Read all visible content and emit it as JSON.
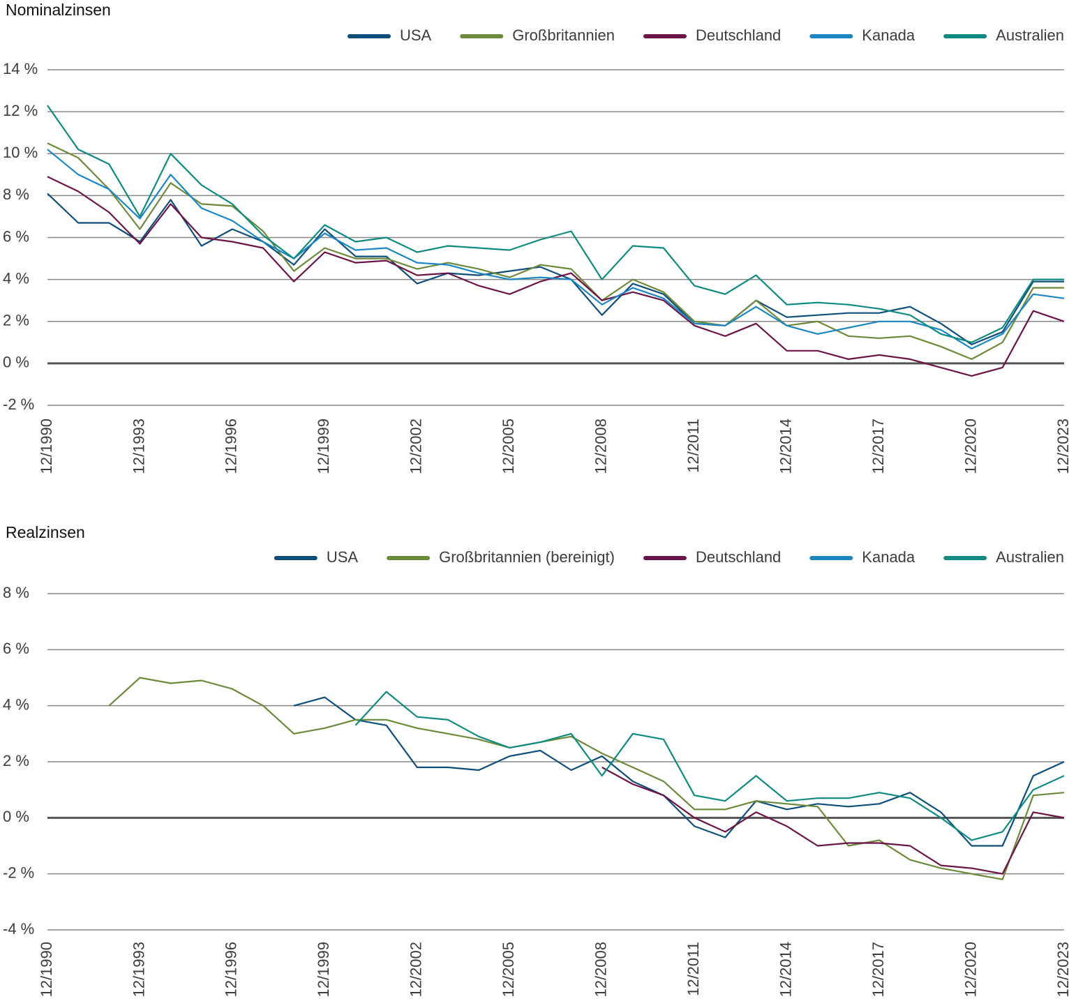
{
  "chart_data": [
    {
      "type": "line",
      "title": "Nominalzinsen",
      "x": [
        1990.92,
        1991.92,
        1992.92,
        1993.92,
        1994.92,
        1995.92,
        1996.92,
        1997.92,
        1998.92,
        1999.92,
        2000.92,
        2001.92,
        2002.92,
        2003.92,
        2004.92,
        2005.92,
        2006.92,
        2007.92,
        2008.92,
        2009.92,
        2010.92,
        2011.92,
        2012.92,
        2013.92,
        2014.92,
        2015.92,
        2016.92,
        2017.92,
        2018.92,
        2019.92,
        2020.92,
        2021.92,
        2022.92,
        2023.92
      ],
      "xlim": [
        1990.92,
        2023.92
      ],
      "xticks": [
        {
          "value": 1990.92,
          "label": "12/1990"
        },
        {
          "value": 1993.92,
          "label": "12/1993"
        },
        {
          "value": 1996.92,
          "label": "12/1996"
        },
        {
          "value": 1999.92,
          "label": "12/1999"
        },
        {
          "value": 2002.92,
          "label": "12/2002"
        },
        {
          "value": 2005.92,
          "label": "12/2005"
        },
        {
          "value": 2008.92,
          "label": "12/2008"
        },
        {
          "value": 2011.92,
          "label": "12/2011"
        },
        {
          "value": 2014.92,
          "label": "12/2014"
        },
        {
          "value": 2017.92,
          "label": "12/2017"
        },
        {
          "value": 2020.92,
          "label": "12/2020"
        },
        {
          "value": 2023.92,
          "label": "12/2023"
        }
      ],
      "ylim": [
        -2,
        14
      ],
      "yticks": [
        {
          "value": -2,
          "label": "-2 %"
        },
        {
          "value": 0,
          "label": "0 %"
        },
        {
          "value": 2,
          "label": "2 %"
        },
        {
          "value": 4,
          "label": "4 %"
        },
        {
          "value": 6,
          "label": "6 %"
        },
        {
          "value": 8,
          "label": "8 %"
        },
        {
          "value": 10,
          "label": "10 %"
        },
        {
          "value": 12,
          "label": "12 %"
        },
        {
          "value": 14,
          "label": "14 %"
        }
      ],
      "grid": true,
      "legend": "top-right",
      "series": [
        {
          "name": "USA",
          "color": "#0d4f7a",
          "values": [
            8.1,
            6.7,
            6.7,
            5.8,
            7.8,
            5.6,
            6.4,
            5.8,
            4.7,
            6.4,
            5.1,
            5.1,
            3.8,
            4.3,
            4.2,
            4.4,
            4.6,
            4.0,
            2.3,
            3.8,
            3.3,
            1.9,
            1.8,
            3.0,
            2.2,
            2.3,
            2.4,
            2.4,
            2.7,
            1.9,
            0.9,
            1.5,
            3.9,
            3.9
          ]
        },
        {
          "name": "Großbritannien",
          "color": "#6b8a3a",
          "values": [
            10.5,
            9.8,
            8.3,
            6.4,
            8.6,
            7.6,
            7.5,
            6.3,
            4.4,
            5.5,
            5.0,
            5.0,
            4.5,
            4.8,
            4.5,
            4.1,
            4.7,
            4.5,
            3.0,
            4.0,
            3.4,
            2.0,
            1.8,
            3.0,
            1.8,
            2.0,
            1.3,
            1.2,
            1.3,
            0.8,
            0.2,
            1.0,
            3.6,
            3.6
          ]
        },
        {
          "name": "Deutschland",
          "color": "#6b1446",
          "values": [
            8.9,
            8.2,
            7.2,
            5.7,
            7.6,
            6.0,
            5.8,
            5.5,
            3.9,
            5.3,
            4.8,
            4.9,
            4.2,
            4.3,
            3.7,
            3.3,
            3.9,
            4.3,
            3.0,
            3.4,
            3.0,
            1.8,
            1.3,
            1.9,
            0.6,
            0.6,
            0.2,
            0.4,
            0.2,
            -0.2,
            -0.6,
            -0.2,
            2.5,
            2.0
          ]
        },
        {
          "name": "Kanada",
          "color": "#1a86c3",
          "values": [
            10.2,
            9.0,
            8.3,
            6.9,
            9.0,
            7.4,
            6.8,
            5.8,
            5.0,
            6.2,
            5.4,
            5.5,
            4.8,
            4.7,
            4.3,
            4.0,
            4.1,
            4.0,
            2.8,
            3.6,
            3.1,
            1.9,
            1.8,
            2.7,
            1.8,
            1.4,
            1.7,
            2.0,
            2.0,
            1.6,
            0.7,
            1.4,
            3.3,
            3.1
          ]
        },
        {
          "name": "Australien",
          "color": "#0f8a80",
          "values": [
            12.3,
            10.2,
            9.5,
            7.0,
            10.0,
            8.5,
            7.6,
            6.1,
            5.0,
            6.6,
            5.8,
            6.0,
            5.3,
            5.6,
            5.5,
            5.4,
            5.9,
            6.3,
            4.0,
            5.6,
            5.5,
            3.7,
            3.3,
            4.2,
            2.8,
            2.9,
            2.8,
            2.6,
            2.3,
            1.4,
            1.0,
            1.7,
            4.0,
            4.0
          ]
        }
      ]
    },
    {
      "type": "line",
      "title": "Realzinsen",
      "x": [
        1990.92,
        1991.92,
        1992.92,
        1993.92,
        1994.92,
        1995.92,
        1996.92,
        1997.92,
        1998.92,
        1999.92,
        2000.92,
        2001.92,
        2002.92,
        2003.92,
        2004.92,
        2005.92,
        2006.92,
        2007.92,
        2008.92,
        2009.92,
        2010.92,
        2011.92,
        2012.92,
        2013.92,
        2014.92,
        2015.92,
        2016.92,
        2017.92,
        2018.92,
        2019.92,
        2020.92,
        2021.92,
        2022.92,
        2023.92
      ],
      "xlim": [
        1990.92,
        2023.92
      ],
      "xticks": [
        {
          "value": 1990.92,
          "label": "12/1990"
        },
        {
          "value": 1993.92,
          "label": "12/1993"
        },
        {
          "value": 1996.92,
          "label": "12/1996"
        },
        {
          "value": 1999.92,
          "label": "12/1999"
        },
        {
          "value": 2002.92,
          "label": "12/2002"
        },
        {
          "value": 2005.92,
          "label": "12/2005"
        },
        {
          "value": 2008.92,
          "label": "12/2008"
        },
        {
          "value": 2011.92,
          "label": "12/2011"
        },
        {
          "value": 2014.92,
          "label": "12/2014"
        },
        {
          "value": 2017.92,
          "label": "12/2017"
        },
        {
          "value": 2020.92,
          "label": "12/2020"
        },
        {
          "value": 2023.92,
          "label": "12/2023"
        }
      ],
      "ylim": [
        -4,
        8
      ],
      "yticks": [
        {
          "value": -4,
          "label": "-4 %"
        },
        {
          "value": -2,
          "label": "-2 %"
        },
        {
          "value": 0,
          "label": "0 %"
        },
        {
          "value": 2,
          "label": "2 %"
        },
        {
          "value": 4,
          "label": "4 %"
        },
        {
          "value": 6,
          "label": "6 %"
        },
        {
          "value": 8,
          "label": "8 %"
        }
      ],
      "grid": true,
      "legend": "top-right",
      "series": [
        {
          "name": "USA",
          "color": "#0d4f7a",
          "values": [
            null,
            null,
            null,
            null,
            null,
            null,
            null,
            null,
            4.0,
            4.3,
            3.5,
            3.3,
            1.8,
            1.8,
            1.7,
            2.2,
            2.4,
            1.7,
            2.2,
            1.3,
            0.8,
            -0.3,
            -0.7,
            0.6,
            0.3,
            0.5,
            0.4,
            0.5,
            0.9,
            0.2,
            -1.0,
            -1.0,
            1.5,
            2.0
          ]
        },
        {
          "name": "Großbritannien (bereinigt)",
          "color": "#6b8a3a",
          "values": [
            null,
            null,
            4.0,
            5.0,
            4.8,
            4.9,
            4.6,
            4.0,
            3.0,
            3.2,
            3.5,
            3.5,
            3.2,
            3.0,
            2.8,
            2.5,
            2.7,
            2.9,
            2.3,
            1.8,
            1.3,
            0.3,
            0.3,
            0.6,
            0.5,
            0.4,
            -1.0,
            -0.8,
            -1.5,
            -1.8,
            -2.0,
            -2.2,
            0.8,
            0.9
          ]
        },
        {
          "name": "Deutschland",
          "color": "#6b1446",
          "values": [
            null,
            null,
            null,
            null,
            null,
            null,
            null,
            null,
            null,
            null,
            null,
            null,
            null,
            null,
            null,
            null,
            null,
            null,
            1.8,
            1.2,
            0.8,
            0.0,
            -0.5,
            0.2,
            -0.3,
            -1.0,
            -0.9,
            -0.9,
            -1.0,
            -1.7,
            -1.8,
            -2.0,
            0.2,
            0.0
          ]
        },
        {
          "name": "Kanada",
          "color": "#1a86c3",
          "values": [
            null,
            null,
            null,
            null,
            null,
            null,
            null,
            null,
            null,
            null,
            null,
            null,
            null,
            null,
            null,
            null,
            null,
            null,
            null,
            null,
            null,
            null,
            null,
            null,
            null,
            null,
            null,
            null,
            null,
            null,
            null,
            null,
            null,
            null
          ]
        },
        {
          "name": "Australien",
          "color": "#0f8a80",
          "values": [
            null,
            null,
            null,
            null,
            null,
            null,
            null,
            null,
            null,
            null,
            3.3,
            4.5,
            3.6,
            3.5,
            2.9,
            2.5,
            2.7,
            3.0,
            1.5,
            3.0,
            2.8,
            0.8,
            0.6,
            1.5,
            0.6,
            0.7,
            0.7,
            0.9,
            0.7,
            0.0,
            -0.8,
            -0.5,
            1.0,
            1.5
          ]
        }
      ]
    }
  ]
}
